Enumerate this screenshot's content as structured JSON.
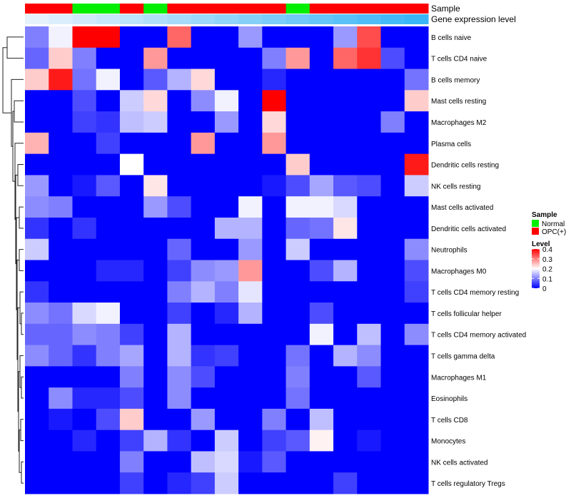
{
  "annotation_titles": {
    "sample": "Sample",
    "gene_expression": "Gene expression level"
  },
  "legend": {
    "sample_title": "Sample",
    "sample_items": [
      {
        "label": "Normal",
        "color": "#00ee00"
      },
      {
        "label": "OPC(+)",
        "color": "#ff0000"
      }
    ],
    "level_title": "Level",
    "level_ticks": [
      "0.4",
      "0.3",
      "0.2",
      "0.1",
      "0"
    ],
    "level_tick_values": [
      0.4,
      0.3,
      0.2,
      0.1,
      0
    ]
  },
  "colors": {
    "low": "#0000ff",
    "mid": "#ffffff",
    "high": "#ff0000",
    "normal": "#00ee00",
    "opc": "#ff0000",
    "expr_low": "#e6f2fb",
    "expr_high": "#33b3f7"
  },
  "chart_data": {
    "type": "heatmap",
    "value_range": [
      0,
      0.4
    ],
    "sample_groups": [
      "OPC(+)",
      "OPC(+)",
      "Normal",
      "Normal",
      "OPC(+)",
      "Normal",
      "OPC(+)",
      "OPC(+)",
      "OPC(+)",
      "OPC(+)",
      "OPC(+)",
      "Normal",
      "OPC(+)",
      "OPC(+)",
      "OPC(+)",
      "OPC(+)",
      "OPC(+)"
    ],
    "gene_expression_level": [
      0.0,
      0.06,
      0.12,
      0.18,
      0.24,
      0.3,
      0.36,
      0.42,
      0.48,
      0.54,
      0.6,
      0.66,
      0.72,
      0.78,
      0.84,
      0.9,
      0.96
    ],
    "rows": [
      "B cells naive",
      "T cells CD4 naive",
      "B cells memory",
      "Mast cells resting",
      "Macrophages M2",
      "Plasma cells",
      "Dendritic cells resting",
      "NK cells resting",
      "Mast cells activated",
      "Dendritic cells activated",
      "Neutrophils",
      "Macrophages M0",
      "T cells CD4 memory resting",
      "T cells follicular helper",
      "T cells CD4 memory activated",
      "T cells gamma delta",
      "Macrophages M1",
      "Eosinophils",
      "T cells CD8",
      "Monocytes",
      "NK cells activated",
      "T cells regulatory  Tregs"
    ],
    "values": [
      [
        0.1,
        0.19,
        0.4,
        0.4,
        0.0,
        0.0,
        0.32,
        0.0,
        0.0,
        0.12,
        0.0,
        0.0,
        0.0,
        0.12,
        0.34,
        0.0,
        0.0
      ],
      [
        0.08,
        0.24,
        0.1,
        0.0,
        0.0,
        0.28,
        0.0,
        0.0,
        0.0,
        0.0,
        0.1,
        0.28,
        0.0,
        0.32,
        0.36,
        0.06,
        0.0
      ],
      [
        0.24,
        0.38,
        0.09,
        0.19,
        0.0,
        0.07,
        0.14,
        0.23,
        0.0,
        0.0,
        0.03,
        0.0,
        0.0,
        0.0,
        0.0,
        0.0,
        0.09
      ],
      [
        0.0,
        0.0,
        0.06,
        0.0,
        0.16,
        0.23,
        0.0,
        0.11,
        0.19,
        0.0,
        0.4,
        0.0,
        0.0,
        0.0,
        0.0,
        0.0,
        0.24
      ],
      [
        0.0,
        0.0,
        0.05,
        0.04,
        0.15,
        0.16,
        0.0,
        0.0,
        0.12,
        0.0,
        0.23,
        0.0,
        0.0,
        0.0,
        0.0,
        0.1,
        0.0
      ],
      [
        0.26,
        0.0,
        0.0,
        0.05,
        0.0,
        0.0,
        0.0,
        0.28,
        0.0,
        0.0,
        0.28,
        0.0,
        0.0,
        0.0,
        0.0,
        0.0,
        0.0
      ],
      [
        0.0,
        0.0,
        0.0,
        0.0,
        0.2,
        0.0,
        0.0,
        0.0,
        0.0,
        0.0,
        0.0,
        0.24,
        0.0,
        0.0,
        0.0,
        0.0,
        0.38
      ],
      [
        0.12,
        0.0,
        0.02,
        0.07,
        0.0,
        0.22,
        0.0,
        0.0,
        0.0,
        0.0,
        0.02,
        0.06,
        0.13,
        0.07,
        0.06,
        0.0,
        0.16
      ],
      [
        0.11,
        0.1,
        0.0,
        0.0,
        0.0,
        0.12,
        0.06,
        0.0,
        0.0,
        0.19,
        0.0,
        0.19,
        0.19,
        0.17,
        0.0,
        0.0,
        0.0
      ],
      [
        0.04,
        0.0,
        0.04,
        0.0,
        0.0,
        0.0,
        0.0,
        0.0,
        0.14,
        0.14,
        0.0,
        0.08,
        0.09,
        0.22,
        0.0,
        0.0,
        0.0
      ],
      [
        0.16,
        0.0,
        0.0,
        0.0,
        0.0,
        0.0,
        0.08,
        0.0,
        0.0,
        0.12,
        0.0,
        0.16,
        0.0,
        0.0,
        0.0,
        0.0,
        0.11
      ],
      [
        0.0,
        0.0,
        0.0,
        0.03,
        0.03,
        0.0,
        0.05,
        0.11,
        0.12,
        0.28,
        0.0,
        0.0,
        0.06,
        0.14,
        0.0,
        0.0,
        0.06
      ],
      [
        0.04,
        0.0,
        0.0,
        0.0,
        0.0,
        0.0,
        0.1,
        0.14,
        0.1,
        0.18,
        0.0,
        0.0,
        0.0,
        0.0,
        0.0,
        0.0,
        0.05
      ],
      [
        0.11,
        0.09,
        0.17,
        0.19,
        0.0,
        0.0,
        0.05,
        0.0,
        0.03,
        0.14,
        0.0,
        0.0,
        0.06,
        0.0,
        0.0,
        0.0,
        0.0
      ],
      [
        0.08,
        0.08,
        0.11,
        0.1,
        0.05,
        0.0,
        0.14,
        0.0,
        0.0,
        0.0,
        0.0,
        0.0,
        0.19,
        0.0,
        0.15,
        0.0,
        0.11
      ],
      [
        0.11,
        0.08,
        0.04,
        0.1,
        0.13,
        0.0,
        0.14,
        0.04,
        0.05,
        0.0,
        0.0,
        0.09,
        0.0,
        0.14,
        0.11,
        0.0,
        0.0
      ],
      [
        0.0,
        0.0,
        0.0,
        0.0,
        0.1,
        0.0,
        0.11,
        0.06,
        0.0,
        0.0,
        0.0,
        0.1,
        0.0,
        0.0,
        0.07,
        0.0,
        0.0
      ],
      [
        0.0,
        0.11,
        0.03,
        0.03,
        0.06,
        0.0,
        0.11,
        0.0,
        0.0,
        0.0,
        0.0,
        0.09,
        0.0,
        0.0,
        0.0,
        0.0,
        0.0
      ],
      [
        0.0,
        0.02,
        0.0,
        0.06,
        0.24,
        0.0,
        0.0,
        0.12,
        0.0,
        0.0,
        0.1,
        0.0,
        0.15,
        0.0,
        0.0,
        0.0,
        0.0
      ],
      [
        0.0,
        0.0,
        0.03,
        0.0,
        0.05,
        0.14,
        0.04,
        0.0,
        0.16,
        0.0,
        0.05,
        0.07,
        0.21,
        0.0,
        0.02,
        0.0,
        0.0
      ],
      [
        0.0,
        0.0,
        0.0,
        0.0,
        0.1,
        0.0,
        0.0,
        0.15,
        0.17,
        0.02,
        0.07,
        0.0,
        0.0,
        0.0,
        0.0,
        0.0,
        0.0
      ],
      [
        0.0,
        0.0,
        0.0,
        0.0,
        0.05,
        0.0,
        0.03,
        0.05,
        0.16,
        0.0,
        0.0,
        0.0,
        0.0,
        0.05,
        0.0,
        0.0,
        0.0
      ]
    ]
  }
}
